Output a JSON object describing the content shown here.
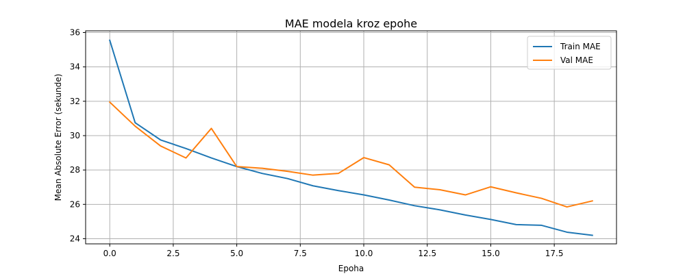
{
  "chart_data": {
    "type": "line",
    "title": "MAE modela kroz epohe",
    "xlabel": "Epoha",
    "ylabel": "Mean Absolute Error (sekunde)",
    "xlim": [
      -0.95,
      19.95
    ],
    "ylim": [
      23.7,
      36.1
    ],
    "xticks": [
      0,
      2.5,
      5,
      7.5,
      10,
      12.5,
      15,
      17.5
    ],
    "xtick_labels": [
      "0.0",
      "2.5",
      "5.0",
      "7.5",
      "10.0",
      "12.5",
      "15.0",
      "17.5"
    ],
    "yticks": [
      24,
      26,
      28,
      30,
      32,
      34,
      36
    ],
    "ytick_labels": [
      "24",
      "26",
      "28",
      "30",
      "32",
      "34",
      "36"
    ],
    "grid": true,
    "legend_position": "top-right",
    "x": [
      0,
      1,
      2,
      3,
      4,
      5,
      6,
      7,
      8,
      9,
      10,
      11,
      12,
      13,
      14,
      15,
      16,
      17,
      18,
      19
    ],
    "series": [
      {
        "name": "Train MAE",
        "color": "#1f77b4",
        "values": [
          35.55,
          30.75,
          29.75,
          29.25,
          28.7,
          28.2,
          27.8,
          27.5,
          27.08,
          26.8,
          26.55,
          26.25,
          25.92,
          25.68,
          25.38,
          25.12,
          24.82,
          24.78,
          24.38,
          24.2
        ]
      },
      {
        "name": "Val MAE",
        "color": "#ff7f0e",
        "values": [
          31.95,
          30.55,
          29.4,
          28.7,
          30.42,
          28.2,
          28.1,
          27.92,
          27.7,
          27.8,
          28.72,
          28.3,
          27.0,
          26.85,
          26.55,
          27.02,
          26.67,
          26.35,
          25.85,
          26.2
        ]
      }
    ]
  }
}
